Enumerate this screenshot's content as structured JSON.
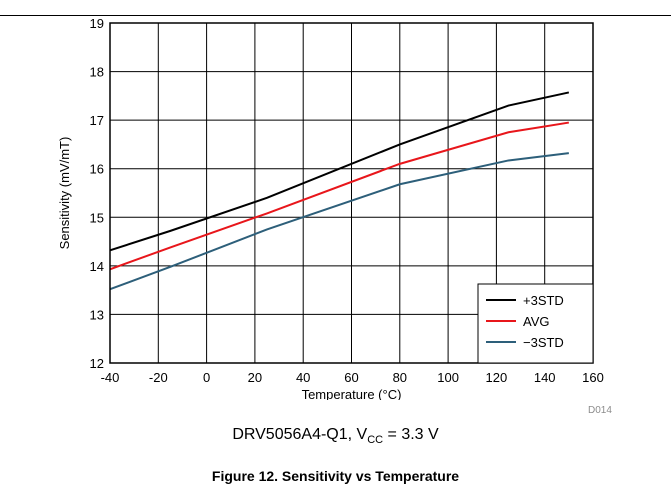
{
  "chart_data": {
    "type": "line",
    "xlabel": "Temperature (°C)",
    "ylabel": "Sensitivity (mV/mT)",
    "xlim": [
      -40,
      160
    ],
    "ylim": [
      12,
      19
    ],
    "xticks": [
      -40,
      -20,
      0,
      20,
      40,
      60,
      80,
      100,
      120,
      140,
      160
    ],
    "yticks": [
      12,
      13,
      14,
      15,
      16,
      17,
      18,
      19
    ],
    "grid": true,
    "legend_position": "bottom-right",
    "series": [
      {
        "name": "+3STD",
        "color": "#000000",
        "x": [
          -40,
          -15,
          25,
          80,
          125,
          150
        ],
        "y": [
          14.32,
          14.72,
          15.4,
          16.5,
          17.3,
          17.57
        ]
      },
      {
        "name": "AVG",
        "color": "#e8161b",
        "x": [
          -40,
          -15,
          25,
          80,
          125,
          150
        ],
        "y": [
          13.93,
          14.38,
          15.08,
          16.1,
          16.75,
          16.95
        ]
      },
      {
        "name": "−3STD",
        "color": "#2d5f7a",
        "x": [
          -40,
          -15,
          25,
          80,
          125,
          150
        ],
        "y": [
          13.52,
          13.98,
          14.75,
          15.68,
          16.17,
          16.32
        ]
      }
    ]
  },
  "plot_code": "D014",
  "sub_caption": {
    "prefix": "DRV5056A4-Q1, V",
    "subscript": "CC",
    "suffix": " = 3.3 V"
  },
  "figure_caption": "Figure 12. Sensitivity vs Temperature"
}
